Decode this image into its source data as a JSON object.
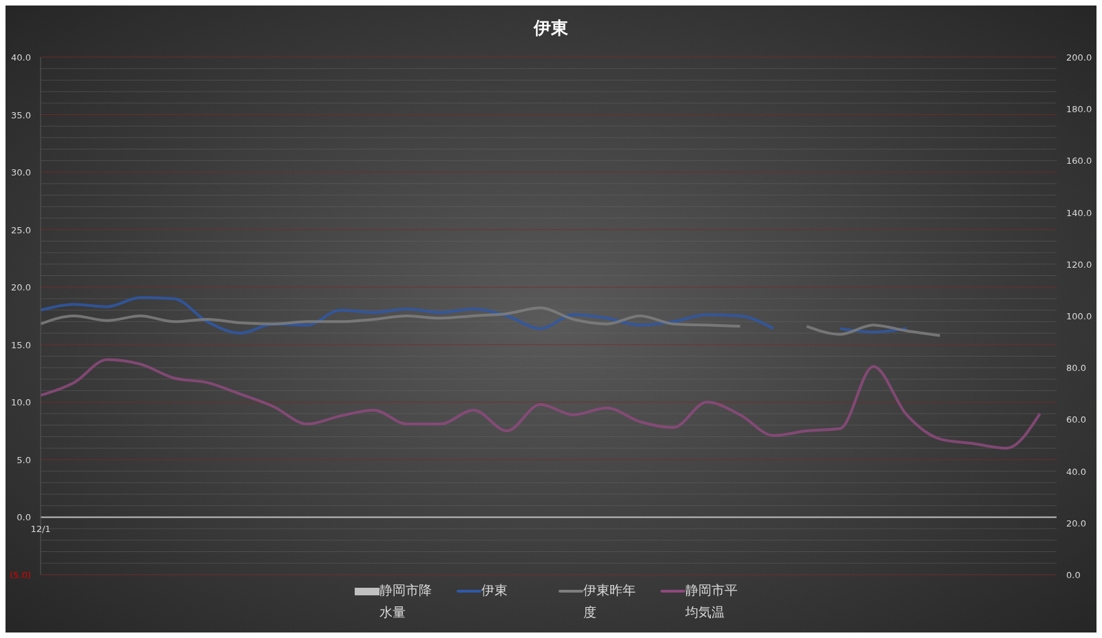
{
  "chart_data": {
    "type": "line",
    "title": "伊東",
    "categories": [
      "12/1",
      null,
      null,
      null,
      null,
      null,
      null,
      null,
      null,
      null,
      null,
      null,
      null,
      null,
      null,
      null,
      null,
      null,
      null,
      null,
      null,
      null,
      null,
      null,
      null,
      null,
      null,
      null,
      null,
      null,
      null
    ],
    "series": [
      {
        "name": "静岡市降水量",
        "type": "bar",
        "color": "#c0c0c0",
        "values": [
          null,
          null,
          null,
          null,
          null,
          null,
          null,
          null,
          null,
          null,
          null,
          null,
          null,
          null,
          null,
          null,
          null,
          null,
          null,
          null,
          null,
          null,
          null,
          null,
          null,
          null,
          null,
          null,
          null,
          null,
          null
        ]
      },
      {
        "name": "伊東",
        "color": "#2f58a8",
        "values": [
          18.0,
          18.5,
          18.3,
          19.1,
          19.0,
          17.0,
          16.0,
          16.8,
          16.7,
          18.0,
          17.8,
          18.1,
          17.8,
          18.1,
          17.5,
          16.4,
          17.6,
          17.3,
          16.7,
          17.0,
          17.6,
          17.5,
          16.4,
          null,
          16.4,
          16.1,
          16.4,
          null,
          null,
          null,
          null
        ]
      },
      {
        "name": "伊東昨年度",
        "color": "#7f7f7f",
        "values": [
          16.8,
          17.5,
          17.1,
          17.5,
          17.0,
          17.2,
          16.9,
          16.8,
          17.0,
          17.0,
          17.2,
          17.5,
          17.3,
          17.5,
          17.7,
          18.2,
          17.2,
          16.8,
          17.5,
          16.8,
          16.7,
          16.6,
          null,
          16.6,
          15.9,
          16.7,
          16.2,
          15.8,
          null,
          null,
          null
        ]
      },
      {
        "name": "静岡市平均気温",
        "color": "#8e4a7e",
        "values": [
          10.6,
          11.7,
          13.7,
          13.3,
          12.1,
          11.7,
          10.7,
          9.6,
          8.1,
          8.8,
          9.3,
          8.1,
          8.1,
          9.3,
          7.5,
          9.8,
          8.9,
          9.5,
          8.3,
          7.8,
          10.0,
          8.9,
          7.1,
          7.5,
          7.7,
          13.1,
          8.9,
          6.8,
          6.4,
          6.0,
          9.0
        ]
      }
    ],
    "ylim": [
      -5,
      40
    ],
    "yticks": [
      {
        "value": -5,
        "label": "(5.0)"
      },
      {
        "value": 0,
        "label": "0.0"
      },
      {
        "value": 5,
        "label": "5.0"
      },
      {
        "value": 10,
        "label": "10.0"
      },
      {
        "value": 15,
        "label": "15.0"
      },
      {
        "value": 20,
        "label": "20.0"
      },
      {
        "value": 25,
        "label": "25.0"
      },
      {
        "value": 30,
        "label": "30.0"
      },
      {
        "value": 35,
        "label": "35.0"
      },
      {
        "value": 40,
        "label": "40.0"
      }
    ],
    "y2lim": [
      0,
      200
    ],
    "y2ticks": [
      {
        "value": 0,
        "label": "0.0"
      },
      {
        "value": 20,
        "label": "20.0"
      },
      {
        "value": 40,
        "label": "40.0"
      },
      {
        "value": 60,
        "label": "60.0"
      },
      {
        "value": 80,
        "label": "80.0"
      },
      {
        "value": 100,
        "label": "100.0"
      },
      {
        "value": 120,
        "label": "120.0"
      },
      {
        "value": 140,
        "label": "140.0"
      },
      {
        "value": 160,
        "label": "160.0"
      },
      {
        "value": 180,
        "label": "180.0"
      },
      {
        "value": 200,
        "label": "200.0"
      }
    ],
    "ref_lines": [
      {
        "axis": "y",
        "value": 0,
        "color": "#bfbfbf"
      }
    ],
    "grid": "y",
    "legend": "bottom",
    "marker": "none",
    "line_style": "solid"
  }
}
